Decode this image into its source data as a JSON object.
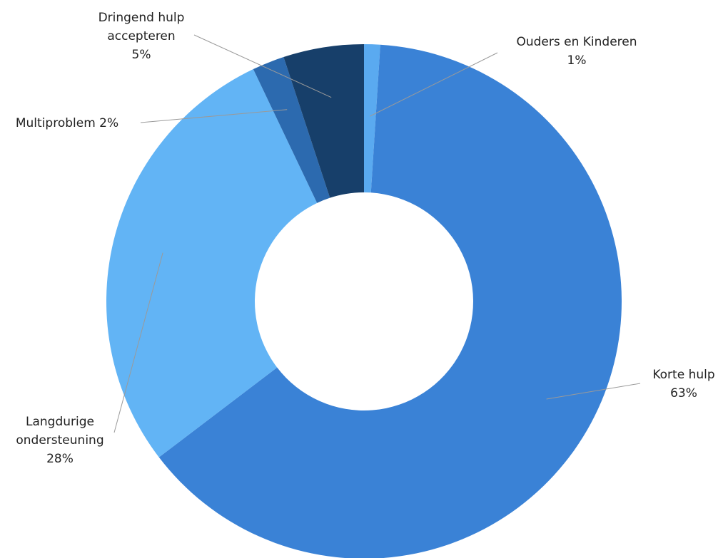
{
  "chart_data": {
    "type": "pie",
    "donut": true,
    "title": "",
    "legend": "none",
    "slices": [
      {
        "name": "Ouders en Kinderen",
        "value": 1,
        "label_text": "1%",
        "color": "#5aaaf0"
      },
      {
        "name": "Korte hulp",
        "value": 63,
        "label_text": "63%",
        "color": "#3a82d6"
      },
      {
        "name": "Langdurige ondersteuning",
        "value": 28,
        "label_text": "28%",
        "color": "#62b4f5"
      },
      {
        "name": "Multiproblem",
        "value": 2,
        "label_text": "2%",
        "color": "#2c6aaf"
      },
      {
        "name": "Dringend hulp accepteren",
        "value": 5,
        "label_text": "5%",
        "color": "#173f6a"
      }
    ],
    "labels": [
      {
        "lines": [
          "Ouders en Kinderen",
          "1%"
        ]
      },
      {
        "lines": [
          "Korte hulp",
          "63%"
        ]
      },
      {
        "lines": [
          "Langdurige",
          "ondersteuning",
          "28%"
        ]
      },
      {
        "lines": [
          "Multiproblem 2%"
        ]
      },
      {
        "lines": [
          "Dringend hulp",
          "accepteren",
          "5%"
        ]
      }
    ]
  }
}
